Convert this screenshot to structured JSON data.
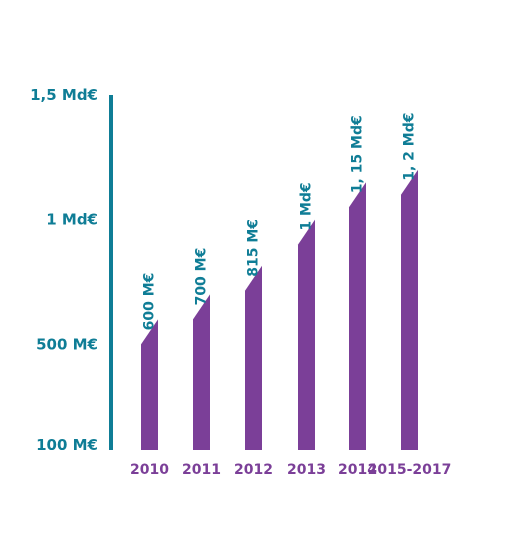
{
  "chart_data": {
    "type": "bar",
    "categories": [
      "2010",
      "2011",
      "2012",
      "2013",
      "2014",
      "2015-2017"
    ],
    "values": [
      600,
      700,
      815,
      1000,
      1150,
      1200
    ],
    "data_labels": [
      "600 M€",
      "700 M€",
      "815 M€",
      "1 Md€",
      "1, 15 Md€",
      "1, 2 Md€"
    ],
    "y_ticks": [
      {
        "value": 100,
        "label": "100 M€"
      },
      {
        "value": 500,
        "label": "500 M€"
      },
      {
        "value": 1000,
        "label": "1 Md€"
      },
      {
        "value": 1500,
        "label": "1,5 Md€"
      }
    ],
    "ylim": [
      100,
      1500
    ],
    "unit": "M€",
    "grid": false,
    "title": "",
    "xlabel": "",
    "ylabel": ""
  },
  "colors": {
    "bar": "#7b3f98",
    "axis": "#0f7d96",
    "tick_label": "#0f7d96",
    "category_label": "#7b3f98",
    "data_label": "#0f7d96"
  }
}
